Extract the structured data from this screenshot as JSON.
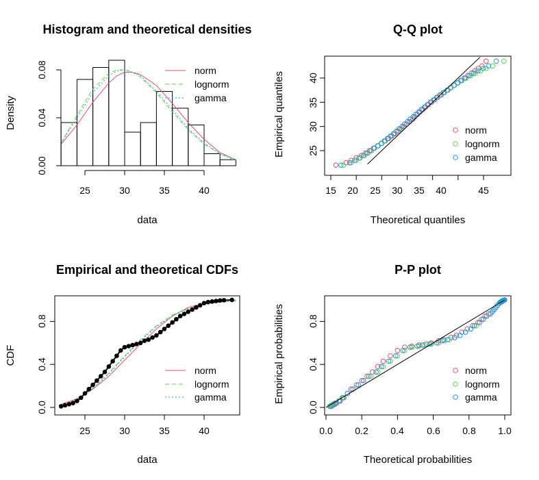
{
  "chart_data": [
    {
      "type": "histogram",
      "title": "Histogram and theoretical densities",
      "xlabel": "data",
      "ylabel": "Density",
      "xticks": [
        25,
        30,
        35,
        40
      ],
      "yticks": [
        "0.00",
        "0.04",
        "0.08"
      ],
      "xlim": [
        22,
        44
      ],
      "ylim": [
        0,
        0.088
      ],
      "bins": [
        {
          "x0": 22,
          "x1": 24,
          "density": 0.036
        },
        {
          "x0": 24,
          "x1": 26,
          "density": 0.072
        },
        {
          "x0": 26,
          "x1": 28,
          "density": 0.082
        },
        {
          "x0": 28,
          "x1": 30,
          "density": 0.088
        },
        {
          "x0": 30,
          "x1": 32,
          "density": 0.028
        },
        {
          "x0": 32,
          "x1": 34,
          "density": 0.036
        },
        {
          "x0": 34,
          "x1": 36,
          "density": 0.062
        },
        {
          "x0": 36,
          "x1": 38,
          "density": 0.048
        },
        {
          "x0": 38,
          "x1": 40,
          "density": 0.034
        },
        {
          "x0": 40,
          "x1": 42,
          "density": 0.01
        },
        {
          "x0": 42,
          "x1": 44,
          "density": 0.005
        }
      ],
      "curves": [
        {
          "name": "norm",
          "color": "#DF536B",
          "dash": "solid",
          "x": [
            22,
            24,
            26,
            28,
            29,
            30,
            31,
            32,
            34,
            36,
            38,
            40,
            42,
            44
          ],
          "y": [
            0.018,
            0.034,
            0.053,
            0.069,
            0.075,
            0.078,
            0.078,
            0.076,
            0.067,
            0.052,
            0.036,
            0.022,
            0.011,
            0.005
          ]
        },
        {
          "name": "lognorm",
          "color": "#61D04F",
          "dash": "6,4",
          "x": [
            22,
            24,
            26,
            28,
            29,
            30,
            31,
            32,
            34,
            36,
            38,
            40,
            42,
            44
          ],
          "y": [
            0.019,
            0.042,
            0.064,
            0.077,
            0.08,
            0.08,
            0.078,
            0.074,
            0.061,
            0.045,
            0.03,
            0.018,
            0.01,
            0.005
          ]
        },
        {
          "name": "gamma",
          "color": "#2297E6",
          "dash": "2,3",
          "x": [
            22,
            24,
            26,
            28,
            29,
            30,
            31,
            32,
            34,
            36,
            38,
            40,
            42,
            44
          ],
          "y": [
            0.019,
            0.04,
            0.061,
            0.075,
            0.079,
            0.08,
            0.078,
            0.075,
            0.062,
            0.047,
            0.031,
            0.019,
            0.01,
            0.004
          ]
        }
      ],
      "legend": [
        "norm",
        "lognorm",
        "gamma"
      ],
      "legend_position": "top-right"
    },
    {
      "type": "scatter",
      "title": "Q-Q plot",
      "xlabel": "Theoretical quantiles",
      "ylabel": "Empirical quantiles",
      "xticks": [
        15,
        20,
        25,
        30,
        35,
        40,
        45
      ],
      "yticks": [
        25,
        30,
        35,
        40
      ],
      "xlim": [
        15,
        49.5
      ],
      "ylim": [
        21.5,
        44.5
      ],
      "reference_line": "y = x",
      "empirical_quantiles": [
        22.0,
        22.5,
        23.0,
        23.5,
        24.0,
        24.5,
        25.0,
        25.5,
        26.0,
        26.5,
        27.0,
        27.5,
        28.0,
        28.5,
        29.0,
        29.5,
        30.0,
        30.5,
        31.0,
        31.5,
        32.0,
        32.5,
        33.0,
        33.5,
        34.0,
        34.5,
        35.0,
        35.5,
        36.0,
        36.5,
        37.0,
        37.5,
        38.0,
        38.5,
        39.0,
        39.5,
        40.0,
        40.5,
        41.0,
        41.5,
        42.0,
        42.5,
        43.5
      ],
      "series": [
        {
          "name": "norm",
          "color": "#DF536B",
          "x": [
            16.0,
            18.0,
            19.0,
            20.0,
            21.0,
            21.8,
            22.6,
            23.4,
            24.2,
            25.0,
            25.7,
            26.4,
            27.0,
            27.6,
            28.2,
            28.8,
            29.3,
            29.9,
            30.5,
            31.1,
            31.5,
            32.0,
            32.5,
            33.1,
            33.6,
            34.2,
            34.8,
            35.4,
            36.0,
            36.7,
            37.3,
            38.0,
            38.6,
            39.2,
            39.9,
            40.5,
            41.2,
            41.9,
            42.6,
            43.3,
            44.0,
            44.7,
            45.5
          ]
        },
        {
          "name": "lognorm",
          "color": "#61D04F",
          "x": [
            17.5,
            19.0,
            20.0,
            20.8,
            21.6,
            22.3,
            23.0,
            23.6,
            24.3,
            25.0,
            25.6,
            26.2,
            26.8,
            27.4,
            27.9,
            28.5,
            29.0,
            29.5,
            30.1,
            30.6,
            31.2,
            31.7,
            32.3,
            32.8,
            33.4,
            34.0,
            34.6,
            35.2,
            35.8,
            36.5,
            37.2,
            37.9,
            38.6,
            39.3,
            40.0,
            40.8,
            41.6,
            42.5,
            43.4,
            44.4,
            45.5,
            46.8,
            49.0
          ]
        },
        {
          "name": "gamma",
          "color": "#2297E6",
          "x": [
            17.0,
            18.7,
            19.7,
            20.6,
            21.4,
            22.1,
            22.8,
            23.5,
            24.2,
            24.9,
            25.5,
            26.1,
            26.7,
            27.3,
            27.9,
            28.4,
            29.0,
            29.5,
            30.1,
            30.6,
            31.2,
            31.7,
            32.3,
            32.8,
            33.4,
            34.0,
            34.6,
            35.2,
            35.8,
            36.4,
            37.1,
            37.8,
            38.5,
            39.2,
            39.9,
            40.6,
            41.4,
            42.2,
            43.0,
            43.9,
            44.9,
            46.0,
            47.5
          ]
        }
      ],
      "legend": [
        "norm",
        "lognorm",
        "gamma"
      ],
      "legend_position": "bottom-right"
    },
    {
      "type": "line",
      "title": "Empirical and theoretical CDFs",
      "xlabel": "data",
      "ylabel": "CDF",
      "xticks": [
        25,
        30,
        35,
        40
      ],
      "yticks": [
        "0.0",
        "0.4",
        "0.8"
      ],
      "xlim": [
        21,
        44.5
      ],
      "ylim": [
        0,
        1
      ],
      "empirical": {
        "x": [
          22.0,
          22.5,
          23.0,
          23.5,
          24.0,
          24.5,
          25.0,
          25.5,
          26.0,
          26.5,
          27.0,
          27.5,
          28.0,
          28.5,
          29.0,
          29.5,
          30.0,
          30.5,
          31.0,
          31.5,
          32.0,
          32.5,
          33.0,
          33.5,
          34.0,
          34.5,
          35.0,
          35.5,
          36.0,
          36.5,
          37.0,
          37.5,
          38.0,
          38.5,
          39.0,
          39.5,
          40.0,
          40.5,
          41.0,
          41.5,
          42.0,
          42.5,
          43.5
        ],
        "y": [
          0.01,
          0.02,
          0.03,
          0.04,
          0.06,
          0.09,
          0.13,
          0.17,
          0.21,
          0.25,
          0.29,
          0.33,
          0.38,
          0.43,
          0.48,
          0.53,
          0.56,
          0.57,
          0.58,
          0.59,
          0.6,
          0.62,
          0.63,
          0.65,
          0.67,
          0.7,
          0.73,
          0.76,
          0.79,
          0.82,
          0.85,
          0.87,
          0.89,
          0.91,
          0.93,
          0.95,
          0.97,
          0.98,
          0.985,
          0.99,
          0.995,
          0.997,
          1.0
        ]
      },
      "curves": [
        {
          "name": "norm",
          "color": "#DF536B",
          "dash": "solid",
          "x": [
            22,
            24,
            26,
            28,
            30,
            32,
            34,
            36,
            38,
            40,
            42,
            44
          ],
          "y": [
            0.03,
            0.08,
            0.17,
            0.29,
            0.44,
            0.59,
            0.73,
            0.85,
            0.93,
            0.97,
            0.99,
            1.0
          ]
        },
        {
          "name": "lognorm",
          "color": "#61D04F",
          "dash": "6,4",
          "x": [
            22,
            24,
            26,
            28,
            30,
            32,
            34,
            36,
            38,
            40,
            42,
            44
          ],
          "y": [
            0.02,
            0.07,
            0.18,
            0.32,
            0.48,
            0.63,
            0.76,
            0.86,
            0.92,
            0.96,
            0.98,
            0.99
          ]
        },
        {
          "name": "gamma",
          "color": "#2297E6",
          "dash": "2,3",
          "x": [
            22,
            24,
            26,
            28,
            30,
            32,
            34,
            36,
            38,
            40,
            42,
            44
          ],
          "y": [
            0.02,
            0.07,
            0.17,
            0.31,
            0.47,
            0.62,
            0.75,
            0.85,
            0.92,
            0.96,
            0.98,
            0.99
          ]
        }
      ],
      "legend": [
        "norm",
        "lognorm",
        "gamma"
      ],
      "legend_position": "bottom-right"
    },
    {
      "type": "scatter",
      "title": "P-P plot",
      "xlabel": "Theoretical probabilities",
      "ylabel": "Empirical probabilities",
      "xticks": [
        "0.0",
        "0.2",
        "0.4",
        "0.6",
        "0.8",
        "1.0"
      ],
      "yticks": [
        "0.0",
        "0.4",
        "0.8"
      ],
      "xlim": [
        -0.03,
        1.03
      ],
      "ylim": [
        0,
        1
      ],
      "reference_line": "y = x",
      "empirical_probabilities": [
        0.01,
        0.02,
        0.03,
        0.04,
        0.06,
        0.09,
        0.13,
        0.17,
        0.21,
        0.25,
        0.29,
        0.33,
        0.38,
        0.43,
        0.48,
        0.53,
        0.56,
        0.57,
        0.58,
        0.59,
        0.6,
        0.62,
        0.63,
        0.65,
        0.67,
        0.7,
        0.73,
        0.76,
        0.79,
        0.82,
        0.85,
        0.87,
        0.89,
        0.91,
        0.93,
        0.95,
        0.97,
        0.98,
        0.985,
        0.99,
        0.995,
        0.997,
        1.0
      ],
      "series": [
        {
          "name": "norm",
          "color": "#DF536B",
          "x": [
            0.03,
            0.04,
            0.05,
            0.06,
            0.08,
            0.1,
            0.12,
            0.14,
            0.17,
            0.2,
            0.23,
            0.26,
            0.29,
            0.32,
            0.36,
            0.4,
            0.44,
            0.48,
            0.52,
            0.56,
            0.59,
            0.63,
            0.66,
            0.7,
            0.73,
            0.76,
            0.79,
            0.82,
            0.85,
            0.87,
            0.89,
            0.91,
            0.93,
            0.94,
            0.95,
            0.96,
            0.97,
            0.98,
            0.985,
            0.99,
            0.993,
            0.996,
            1.0
          ]
        },
        {
          "name": "lognorm",
          "color": "#61D04F",
          "x": [
            0.02,
            0.03,
            0.04,
            0.05,
            0.07,
            0.09,
            0.12,
            0.15,
            0.18,
            0.21,
            0.25,
            0.29,
            0.32,
            0.36,
            0.4,
            0.44,
            0.48,
            0.52,
            0.55,
            0.59,
            0.63,
            0.66,
            0.69,
            0.72,
            0.75,
            0.78,
            0.81,
            0.84,
            0.86,
            0.88,
            0.9,
            0.92,
            0.93,
            0.94,
            0.95,
            0.96,
            0.97,
            0.975,
            0.98,
            0.985,
            0.99,
            0.995,
            0.998
          ]
        },
        {
          "name": "gamma",
          "color": "#2297E6",
          "x": [
            0.025,
            0.035,
            0.045,
            0.055,
            0.075,
            0.095,
            0.12,
            0.15,
            0.18,
            0.21,
            0.24,
            0.28,
            0.31,
            0.35,
            0.39,
            0.43,
            0.47,
            0.51,
            0.54,
            0.58,
            0.62,
            0.65,
            0.68,
            0.72,
            0.75,
            0.78,
            0.81,
            0.83,
            0.86,
            0.88,
            0.9,
            0.92,
            0.93,
            0.94,
            0.95,
            0.96,
            0.97,
            0.977,
            0.983,
            0.988,
            0.992,
            0.996,
            0.999
          ]
        }
      ],
      "legend": [
        "norm",
        "lognorm",
        "gamma"
      ],
      "legend_position": "bottom-right"
    }
  ]
}
